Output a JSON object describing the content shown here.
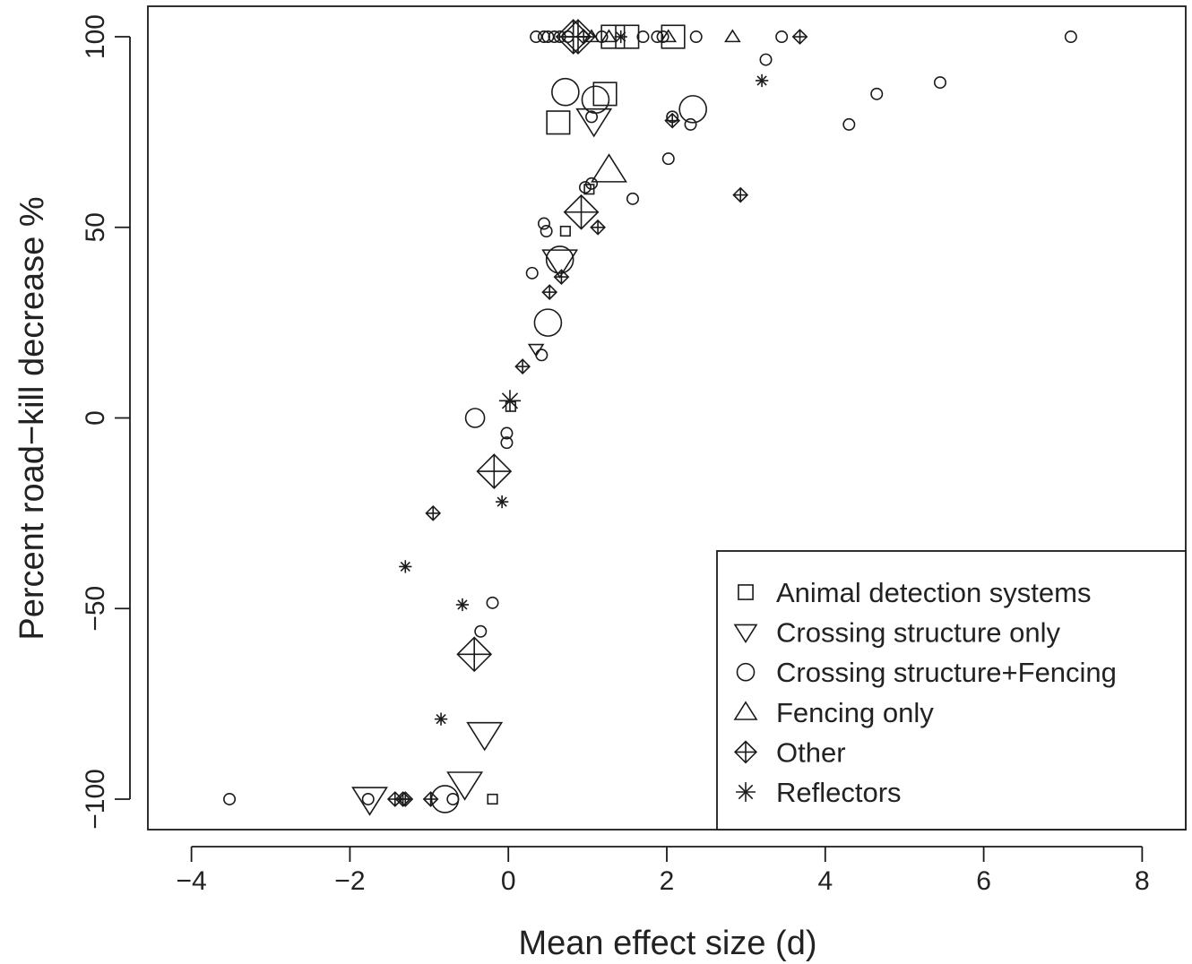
{
  "chart_data": {
    "type": "scatter",
    "xlabel": "Mean effect size (d)",
    "ylabel": "Percent road−kill decrease %",
    "xlim": [
      -4.55,
      8.55
    ],
    "ylim": [
      -108,
      108
    ],
    "xticks": [
      -4,
      -2,
      0,
      2,
      4,
      6,
      8
    ],
    "yticks": [
      -100,
      -50,
      0,
      50,
      100
    ],
    "grid": false,
    "legend_position": "bottom-right",
    "marker_sizes": [
      "small",
      "medium",
      "large"
    ],
    "series": [
      {
        "name": "Animal detection systems",
        "marker": "square",
        "points": [
          {
            "x": -0.2,
            "y": -100,
            "size": "small"
          },
          {
            "x": 0.03,
            "y": 3,
            "size": "small"
          },
          {
            "x": 0.72,
            "y": 49,
            "size": "small"
          },
          {
            "x": 1.02,
            "y": 60,
            "size": "small"
          },
          {
            "x": 0.63,
            "y": 77.5,
            "size": "large"
          },
          {
            "x": 1.22,
            "y": 85,
            "size": "large"
          },
          {
            "x": 1.32,
            "y": 100,
            "size": "large"
          },
          {
            "x": 1.5,
            "y": 100,
            "size": "large"
          },
          {
            "x": 2.08,
            "y": 100,
            "size": "large"
          }
        ]
      },
      {
        "name": "Crossing structure only",
        "marker": "triangle-down",
        "points": [
          {
            "x": -1.75,
            "y": -100,
            "size": "large"
          },
          {
            "x": -0.55,
            "y": -96,
            "size": "large"
          },
          {
            "x": -0.3,
            "y": -83,
            "size": "large"
          },
          {
            "x": 0.35,
            "y": 18,
            "size": "small"
          },
          {
            "x": 0.65,
            "y": 41,
            "size": "large"
          },
          {
            "x": 1.08,
            "y": 78,
            "size": "large"
          }
        ]
      },
      {
        "name": "Crossing structure+Fencing",
        "marker": "circle",
        "points": [
          {
            "x": -3.52,
            "y": -100,
            "size": "small"
          },
          {
            "x": -1.77,
            "y": -100,
            "size": "small"
          },
          {
            "x": -0.8,
            "y": -100,
            "size": "large"
          },
          {
            "x": -0.7,
            "y": -100,
            "size": "small"
          },
          {
            "x": -0.35,
            "y": -56,
            "size": "small"
          },
          {
            "x": -0.2,
            "y": -48.5,
            "size": "small"
          },
          {
            "x": -0.42,
            "y": 0,
            "size": "medium"
          },
          {
            "x": -0.02,
            "y": -4,
            "size": "small"
          },
          {
            "x": -0.02,
            "y": -6.5,
            "size": "small"
          },
          {
            "x": 0.42,
            "y": 16.5,
            "size": "small"
          },
          {
            "x": 0.5,
            "y": 25,
            "size": "large"
          },
          {
            "x": 0.3,
            "y": 38,
            "size": "small"
          },
          {
            "x": 0.65,
            "y": 41.5,
            "size": "large"
          },
          {
            "x": 0.45,
            "y": 51,
            "size": "small"
          },
          {
            "x": 0.48,
            "y": 49,
            "size": "small"
          },
          {
            "x": 0.97,
            "y": 60.5,
            "size": "small"
          },
          {
            "x": 1.05,
            "y": 61.5,
            "size": "small"
          },
          {
            "x": 1.57,
            "y": 57.5,
            "size": "small"
          },
          {
            "x": 2.02,
            "y": 68,
            "size": "small"
          },
          {
            "x": 0.72,
            "y": 85.5,
            "size": "large"
          },
          {
            "x": 1.1,
            "y": 83.5,
            "size": "large"
          },
          {
            "x": 1.05,
            "y": 79,
            "size": "small"
          },
          {
            "x": 2.07,
            "y": 79,
            "size": "small"
          },
          {
            "x": 2.3,
            "y": 77,
            "size": "small"
          },
          {
            "x": 2.33,
            "y": 81,
            "size": "large"
          },
          {
            "x": 0.35,
            "y": 100,
            "size": "small"
          },
          {
            "x": 0.45,
            "y": 100,
            "size": "small"
          },
          {
            "x": 0.5,
            "y": 100,
            "size": "small"
          },
          {
            "x": 0.58,
            "y": 100,
            "size": "small"
          },
          {
            "x": 0.65,
            "y": 100,
            "size": "small"
          },
          {
            "x": 0.75,
            "y": 100,
            "size": "small"
          },
          {
            "x": 1.18,
            "y": 100,
            "size": "small"
          },
          {
            "x": 1.7,
            "y": 100,
            "size": "small"
          },
          {
            "x": 1.88,
            "y": 100,
            "size": "small"
          },
          {
            "x": 1.95,
            "y": 100,
            "size": "small"
          },
          {
            "x": 2.37,
            "y": 100,
            "size": "small"
          },
          {
            "x": 3.25,
            "y": 94,
            "size": "small"
          },
          {
            "x": 3.45,
            "y": 100,
            "size": "small"
          },
          {
            "x": 4.3,
            "y": 77,
            "size": "small"
          },
          {
            "x": 4.65,
            "y": 85,
            "size": "small"
          },
          {
            "x": 5.45,
            "y": 88,
            "size": "small"
          },
          {
            "x": 7.1,
            "y": 100,
            "size": "small"
          }
        ]
      },
      {
        "name": "Fencing only",
        "marker": "triangle-up",
        "points": [
          {
            "x": 1.27,
            "y": 65,
            "size": "large"
          },
          {
            "x": 1.05,
            "y": 100,
            "size": "small"
          },
          {
            "x": 1.27,
            "y": 100,
            "size": "small"
          },
          {
            "x": 2.02,
            "y": 100,
            "size": "small"
          },
          {
            "x": 2.83,
            "y": 100,
            "size": "small"
          }
        ]
      },
      {
        "name": "Other",
        "marker": "diamond-plus",
        "points": [
          {
            "x": -1.43,
            "y": -100,
            "size": "small"
          },
          {
            "x": -1.33,
            "y": -100,
            "size": "small"
          },
          {
            "x": -1.3,
            "y": -100,
            "size": "small"
          },
          {
            "x": -0.98,
            "y": -100,
            "size": "small"
          },
          {
            "x": -0.43,
            "y": -62,
            "size": "large"
          },
          {
            "x": -0.95,
            "y": -25,
            "size": "small"
          },
          {
            "x": -0.18,
            "y": -14,
            "size": "large"
          },
          {
            "x": 0.18,
            "y": 13.5,
            "size": "small"
          },
          {
            "x": 0.52,
            "y": 33,
            "size": "small"
          },
          {
            "x": 0.67,
            "y": 37,
            "size": "small"
          },
          {
            "x": 0.92,
            "y": 54,
            "size": "large"
          },
          {
            "x": 1.13,
            "y": 50,
            "size": "small"
          },
          {
            "x": 2.07,
            "y": 78,
            "size": "small"
          },
          {
            "x": 2.93,
            "y": 58.5,
            "size": "small"
          },
          {
            "x": 0.82,
            "y": 100,
            "size": "large"
          },
          {
            "x": 0.88,
            "y": 100,
            "size": "large"
          },
          {
            "x": 0.95,
            "y": 100,
            "size": "small"
          },
          {
            "x": 3.68,
            "y": 100,
            "size": "small"
          }
        ]
      },
      {
        "name": "Reflectors",
        "marker": "asterisk",
        "points": [
          {
            "x": -1.3,
            "y": -39,
            "size": "small"
          },
          {
            "x": -0.58,
            "y": -49,
            "size": "small"
          },
          {
            "x": -0.85,
            "y": -79,
            "size": "small"
          },
          {
            "x": -0.08,
            "y": -22,
            "size": "small"
          },
          {
            "x": 0.02,
            "y": 4.5,
            "size": "medium"
          },
          {
            "x": 1.42,
            "y": 100,
            "size": "small"
          },
          {
            "x": 3.2,
            "y": 88.5,
            "size": "small"
          }
        ]
      }
    ]
  }
}
